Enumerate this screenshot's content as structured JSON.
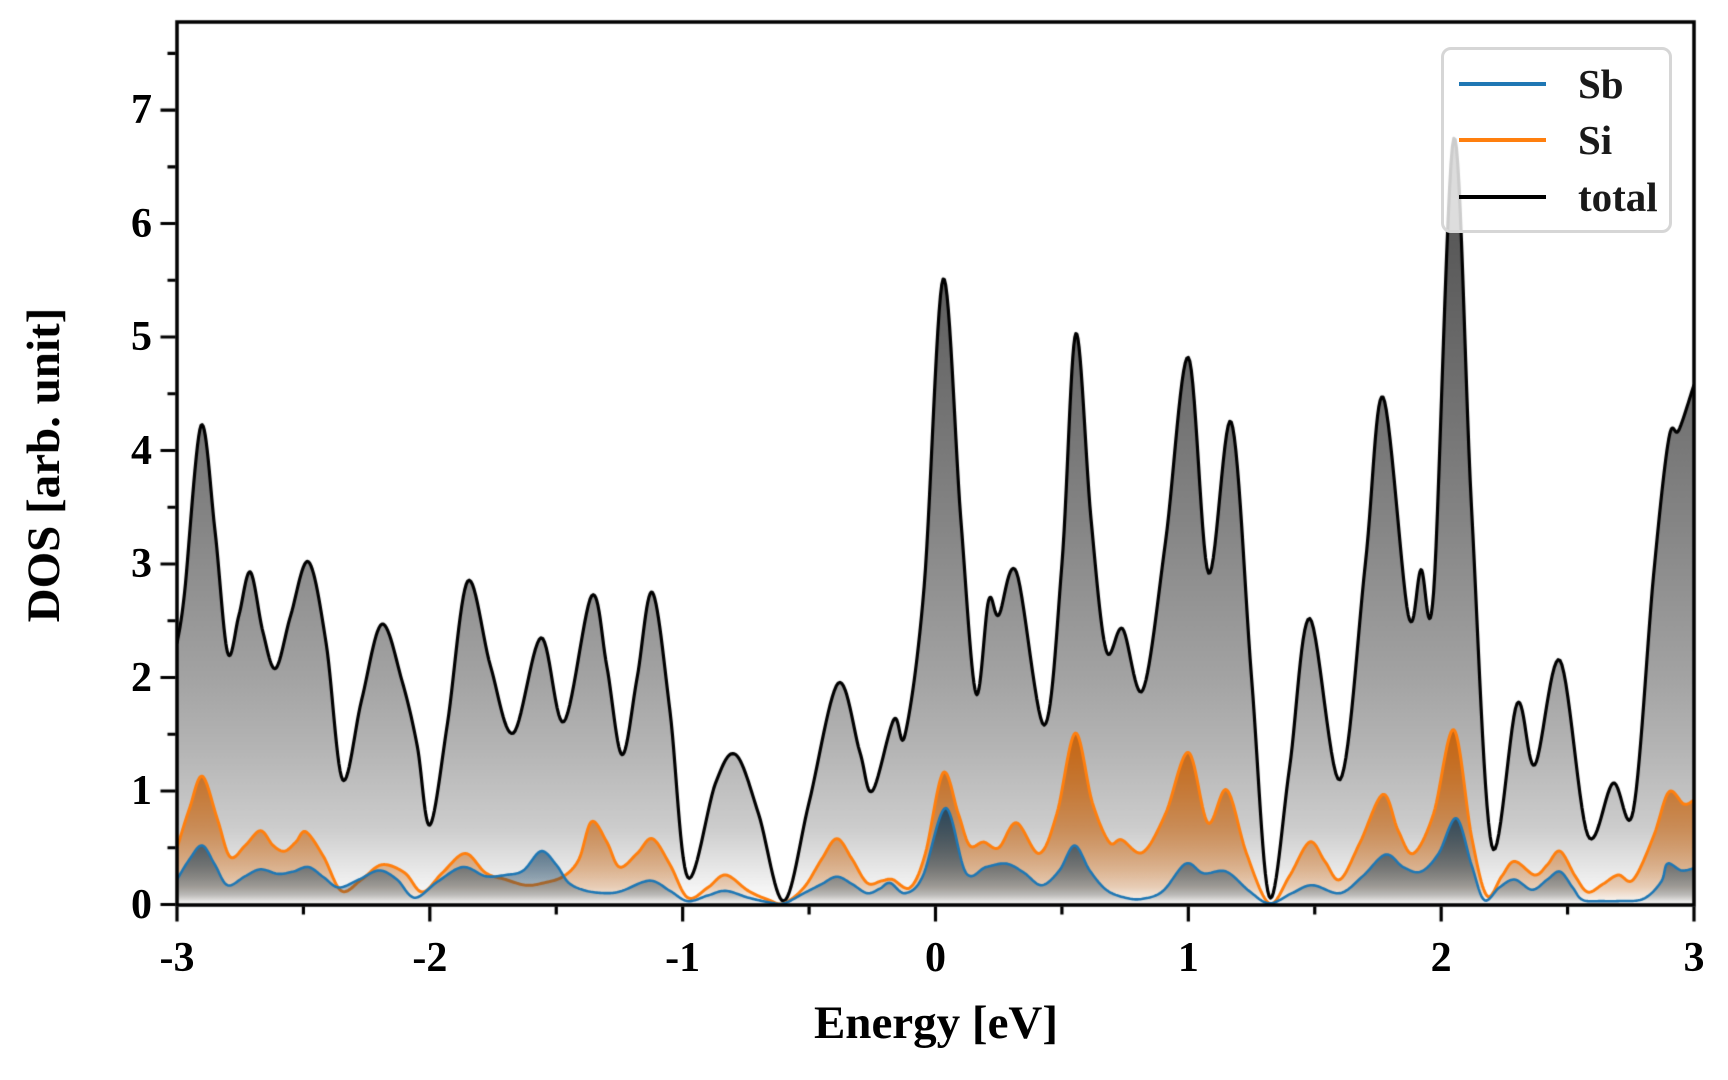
{
  "chart_data": {
    "type": "area",
    "title": "",
    "xlabel": "Energy [eV]",
    "ylabel": "DOS [arb. unit]",
    "xlim": [
      -3,
      3
    ],
    "ylim": [
      0,
      7.78
    ],
    "grid": false,
    "xtick_labels": [
      "-3",
      "-2",
      "-1",
      "0",
      "1",
      "2",
      "3"
    ],
    "xtick_values": [
      -3,
      -2,
      -1,
      0,
      1,
      2,
      3
    ],
    "ytick_labels": [
      "0",
      "1",
      "2",
      "3",
      "4",
      "5",
      "6",
      "7"
    ],
    "ytick_values": [
      0,
      1,
      2,
      3,
      4,
      5,
      6,
      7
    ],
    "minor_tick_step": 0.5,
    "legend": {
      "position": "upper right",
      "items": [
        {
          "label": "Sb",
          "color": "#1f77b4"
        },
        {
          "label": "Si",
          "color": "#ff7f0e"
        },
        {
          "label": "total",
          "color": "#000000"
        }
      ]
    },
    "series": [
      {
        "name": "total",
        "color": "#000000",
        "fill_base": "#1a1a1a",
        "fill_alpha": 0.78,
        "line_width": 3.2,
        "points": [
          [
            -3.0,
            2.3
          ],
          [
            -2.97,
            2.75
          ],
          [
            -2.905,
            4.22
          ],
          [
            -2.85,
            3.3
          ],
          [
            -2.8,
            2.22
          ],
          [
            -2.755,
            2.55
          ],
          [
            -2.71,
            2.93
          ],
          [
            -2.66,
            2.4
          ],
          [
            -2.61,
            2.08
          ],
          [
            -2.55,
            2.55
          ],
          [
            -2.48,
            3.02
          ],
          [
            -2.41,
            2.3
          ],
          [
            -2.345,
            1.1
          ],
          [
            -2.27,
            1.8
          ],
          [
            -2.19,
            2.47
          ],
          [
            -2.11,
            1.97
          ],
          [
            -2.05,
            1.4
          ],
          [
            -2.0,
            0.7
          ],
          [
            -1.93,
            1.6
          ],
          [
            -1.85,
            2.85
          ],
          [
            -1.76,
            2.1
          ],
          [
            -1.67,
            1.51
          ],
          [
            -1.56,
            2.35
          ],
          [
            -1.47,
            1.61
          ],
          [
            -1.36,
            2.72
          ],
          [
            -1.3,
            2.1
          ],
          [
            -1.24,
            1.32
          ],
          [
            -1.18,
            2.0
          ],
          [
            -1.12,
            2.75
          ],
          [
            -1.05,
            1.7
          ],
          [
            -0.98,
            0.24
          ],
          [
            -0.87,
            1.07
          ],
          [
            -0.79,
            1.32
          ],
          [
            -0.7,
            0.8
          ],
          [
            -0.6,
            0.03
          ],
          [
            -0.5,
            0.9
          ],
          [
            -0.385,
            1.95
          ],
          [
            -0.3,
            1.35
          ],
          [
            -0.25,
            1.0
          ],
          [
            -0.165,
            1.63
          ],
          [
            -0.12,
            1.5
          ],
          [
            -0.045,
            2.8
          ],
          [
            0.03,
            5.51
          ],
          [
            0.1,
            3.4
          ],
          [
            0.16,
            1.86
          ],
          [
            0.21,
            2.68
          ],
          [
            0.25,
            2.55
          ],
          [
            0.32,
            2.93
          ],
          [
            0.43,
            1.58
          ],
          [
            0.5,
            3.0
          ],
          [
            0.555,
            5.03
          ],
          [
            0.615,
            3.4
          ],
          [
            0.675,
            2.24
          ],
          [
            0.74,
            2.43
          ],
          [
            0.82,
            1.89
          ],
          [
            0.91,
            3.2
          ],
          [
            1.0,
            4.82
          ],
          [
            1.08,
            2.92
          ],
          [
            1.17,
            4.25
          ],
          [
            1.25,
            2.0
          ],
          [
            1.32,
            0.07
          ],
          [
            1.4,
            1.2
          ],
          [
            1.48,
            2.52
          ],
          [
            1.6,
            1.1
          ],
          [
            1.7,
            3.0
          ],
          [
            1.77,
            4.47
          ],
          [
            1.87,
            2.55
          ],
          [
            1.92,
            2.95
          ],
          [
            1.97,
            2.75
          ],
          [
            2.05,
            6.75
          ],
          [
            2.12,
            3.5
          ],
          [
            2.2,
            0.52
          ],
          [
            2.3,
            1.77
          ],
          [
            2.37,
            1.23
          ],
          [
            2.47,
            2.15
          ],
          [
            2.58,
            0.61
          ],
          [
            2.68,
            1.07
          ],
          [
            2.76,
            0.83
          ],
          [
            2.84,
            2.9
          ],
          [
            2.9,
            4.1
          ],
          [
            2.94,
            4.18
          ],
          [
            3.0,
            4.58
          ]
        ]
      },
      {
        "name": "Si",
        "color": "#ff7f0e",
        "fill_base": "#c85f04",
        "fill_alpha": 0.92,
        "line_width": 3.0,
        "points": [
          [
            -3.0,
            0.5
          ],
          [
            -2.95,
            0.85
          ],
          [
            -2.9,
            1.13
          ],
          [
            -2.84,
            0.75
          ],
          [
            -2.79,
            0.42
          ],
          [
            -2.73,
            0.52
          ],
          [
            -2.67,
            0.65
          ],
          [
            -2.62,
            0.52
          ],
          [
            -2.575,
            0.47
          ],
          [
            -2.53,
            0.55
          ],
          [
            -2.49,
            0.64
          ],
          [
            -2.42,
            0.42
          ],
          [
            -2.35,
            0.12
          ],
          [
            -2.27,
            0.22
          ],
          [
            -2.19,
            0.35
          ],
          [
            -2.1,
            0.28
          ],
          [
            -2.03,
            0.11
          ],
          [
            -1.95,
            0.28
          ],
          [
            -1.86,
            0.45
          ],
          [
            -1.78,
            0.28
          ],
          [
            -1.7,
            0.22
          ],
          [
            -1.62,
            0.17
          ],
          [
            -1.55,
            0.19
          ],
          [
            -1.47,
            0.25
          ],
          [
            -1.41,
            0.4
          ],
          [
            -1.36,
            0.73
          ],
          [
            -1.3,
            0.55
          ],
          [
            -1.25,
            0.33
          ],
          [
            -1.18,
            0.45
          ],
          [
            -1.12,
            0.58
          ],
          [
            -1.05,
            0.35
          ],
          [
            -0.98,
            0.06
          ],
          [
            -0.9,
            0.15
          ],
          [
            -0.83,
            0.26
          ],
          [
            -0.74,
            0.12
          ],
          [
            -0.66,
            0.04
          ],
          [
            -0.6,
            0.01
          ],
          [
            -0.52,
            0.15
          ],
          [
            -0.45,
            0.4
          ],
          [
            -0.39,
            0.58
          ],
          [
            -0.33,
            0.4
          ],
          [
            -0.27,
            0.19
          ],
          [
            -0.21,
            0.21
          ],
          [
            -0.17,
            0.22
          ],
          [
            -0.1,
            0.15
          ],
          [
            -0.04,
            0.45
          ],
          [
            0.03,
            1.16
          ],
          [
            0.09,
            0.8
          ],
          [
            0.135,
            0.52
          ],
          [
            0.19,
            0.55
          ],
          [
            0.25,
            0.5
          ],
          [
            0.32,
            0.72
          ],
          [
            0.41,
            0.45
          ],
          [
            0.48,
            0.8
          ],
          [
            0.553,
            1.51
          ],
          [
            0.62,
            0.9
          ],
          [
            0.687,
            0.55
          ],
          [
            0.736,
            0.57
          ],
          [
            0.82,
            0.46
          ],
          [
            0.91,
            0.8
          ],
          [
            1.0,
            1.34
          ],
          [
            1.077,
            0.72
          ],
          [
            1.152,
            1.01
          ],
          [
            1.23,
            0.45
          ],
          [
            1.32,
            0.01
          ],
          [
            1.4,
            0.25
          ],
          [
            1.48,
            0.55
          ],
          [
            1.54,
            0.38
          ],
          [
            1.6,
            0.22
          ],
          [
            1.68,
            0.55
          ],
          [
            1.77,
            0.97
          ],
          [
            1.83,
            0.65
          ],
          [
            1.89,
            0.45
          ],
          [
            1.97,
            0.8
          ],
          [
            2.05,
            1.54
          ],
          [
            2.12,
            0.6
          ],
          [
            2.18,
            0.08
          ],
          [
            2.24,
            0.25
          ],
          [
            2.29,
            0.38
          ],
          [
            2.37,
            0.26
          ],
          [
            2.42,
            0.35
          ],
          [
            2.47,
            0.47
          ],
          [
            2.53,
            0.25
          ],
          [
            2.58,
            0.11
          ],
          [
            2.64,
            0.18
          ],
          [
            2.7,
            0.26
          ],
          [
            2.76,
            0.22
          ],
          [
            2.84,
            0.6
          ],
          [
            2.9,
            0.99
          ],
          [
            2.96,
            0.885
          ],
          [
            3.0,
            0.92
          ]
        ]
      },
      {
        "name": "Sb",
        "color": "#1f77b4",
        "fill_base": "#16405f",
        "fill_alpha": 0.88,
        "line_width": 2.6,
        "points": [
          [
            -3.0,
            0.22
          ],
          [
            -2.95,
            0.4
          ],
          [
            -2.9,
            0.52
          ],
          [
            -2.85,
            0.35
          ],
          [
            -2.8,
            0.17
          ],
          [
            -2.73,
            0.25
          ],
          [
            -2.67,
            0.31
          ],
          [
            -2.6,
            0.27
          ],
          [
            -2.54,
            0.29
          ],
          [
            -2.48,
            0.33
          ],
          [
            -2.42,
            0.24
          ],
          [
            -2.36,
            0.15
          ],
          [
            -2.28,
            0.22
          ],
          [
            -2.2,
            0.3
          ],
          [
            -2.13,
            0.22
          ],
          [
            -2.06,
            0.06
          ],
          [
            -1.97,
            0.2
          ],
          [
            -1.87,
            0.33
          ],
          [
            -1.78,
            0.25
          ],
          [
            -1.7,
            0.26
          ],
          [
            -1.63,
            0.3
          ],
          [
            -1.56,
            0.47
          ],
          [
            -1.5,
            0.35
          ],
          [
            -1.45,
            0.19
          ],
          [
            -1.38,
            0.12
          ],
          [
            -1.3,
            0.1
          ],
          [
            -1.24,
            0.12
          ],
          [
            -1.13,
            0.21
          ],
          [
            -1.05,
            0.12
          ],
          [
            -0.98,
            0.03
          ],
          [
            -0.9,
            0.08
          ],
          [
            -0.83,
            0.12
          ],
          [
            -0.74,
            0.06
          ],
          [
            -0.66,
            0.02
          ],
          [
            -0.6,
            0.01
          ],
          [
            -0.52,
            0.1
          ],
          [
            -0.45,
            0.18
          ],
          [
            -0.39,
            0.245
          ],
          [
            -0.33,
            0.18
          ],
          [
            -0.27,
            0.1
          ],
          [
            -0.22,
            0.14
          ],
          [
            -0.18,
            0.19
          ],
          [
            -0.12,
            0.1
          ],
          [
            -0.05,
            0.25
          ],
          [
            0.04,
            0.85
          ],
          [
            0.12,
            0.28
          ],
          [
            0.2,
            0.33
          ],
          [
            0.28,
            0.36
          ],
          [
            0.35,
            0.28
          ],
          [
            0.42,
            0.17
          ],
          [
            0.49,
            0.3
          ],
          [
            0.55,
            0.52
          ],
          [
            0.61,
            0.3
          ],
          [
            0.675,
            0.13
          ],
          [
            0.75,
            0.06
          ],
          [
            0.82,
            0.05
          ],
          [
            0.9,
            0.12
          ],
          [
            0.99,
            0.36
          ],
          [
            1.06,
            0.275
          ],
          [
            1.15,
            0.29
          ],
          [
            1.24,
            0.12
          ],
          [
            1.32,
            0.01
          ],
          [
            1.41,
            0.1
          ],
          [
            1.49,
            0.17
          ],
          [
            1.6,
            0.1
          ],
          [
            1.69,
            0.25
          ],
          [
            1.78,
            0.44
          ],
          [
            1.85,
            0.33
          ],
          [
            1.92,
            0.29
          ],
          [
            1.99,
            0.45
          ],
          [
            2.06,
            0.76
          ],
          [
            2.12,
            0.35
          ],
          [
            2.17,
            0.04
          ],
          [
            2.23,
            0.15
          ],
          [
            2.29,
            0.22
          ],
          [
            2.36,
            0.13
          ],
          [
            2.42,
            0.22
          ],
          [
            2.47,
            0.29
          ],
          [
            2.52,
            0.15
          ],
          [
            2.56,
            0.04
          ],
          [
            2.64,
            0.03
          ],
          [
            2.7,
            0.03
          ],
          [
            2.8,
            0.05
          ],
          [
            2.87,
            0.2
          ],
          [
            2.895,
            0.36
          ],
          [
            2.95,
            0.3
          ],
          [
            3.0,
            0.32
          ]
        ]
      }
    ],
    "axis_color": "#000000",
    "background_color": "#ffffff",
    "legend_border_color": "#d6d6d6"
  }
}
